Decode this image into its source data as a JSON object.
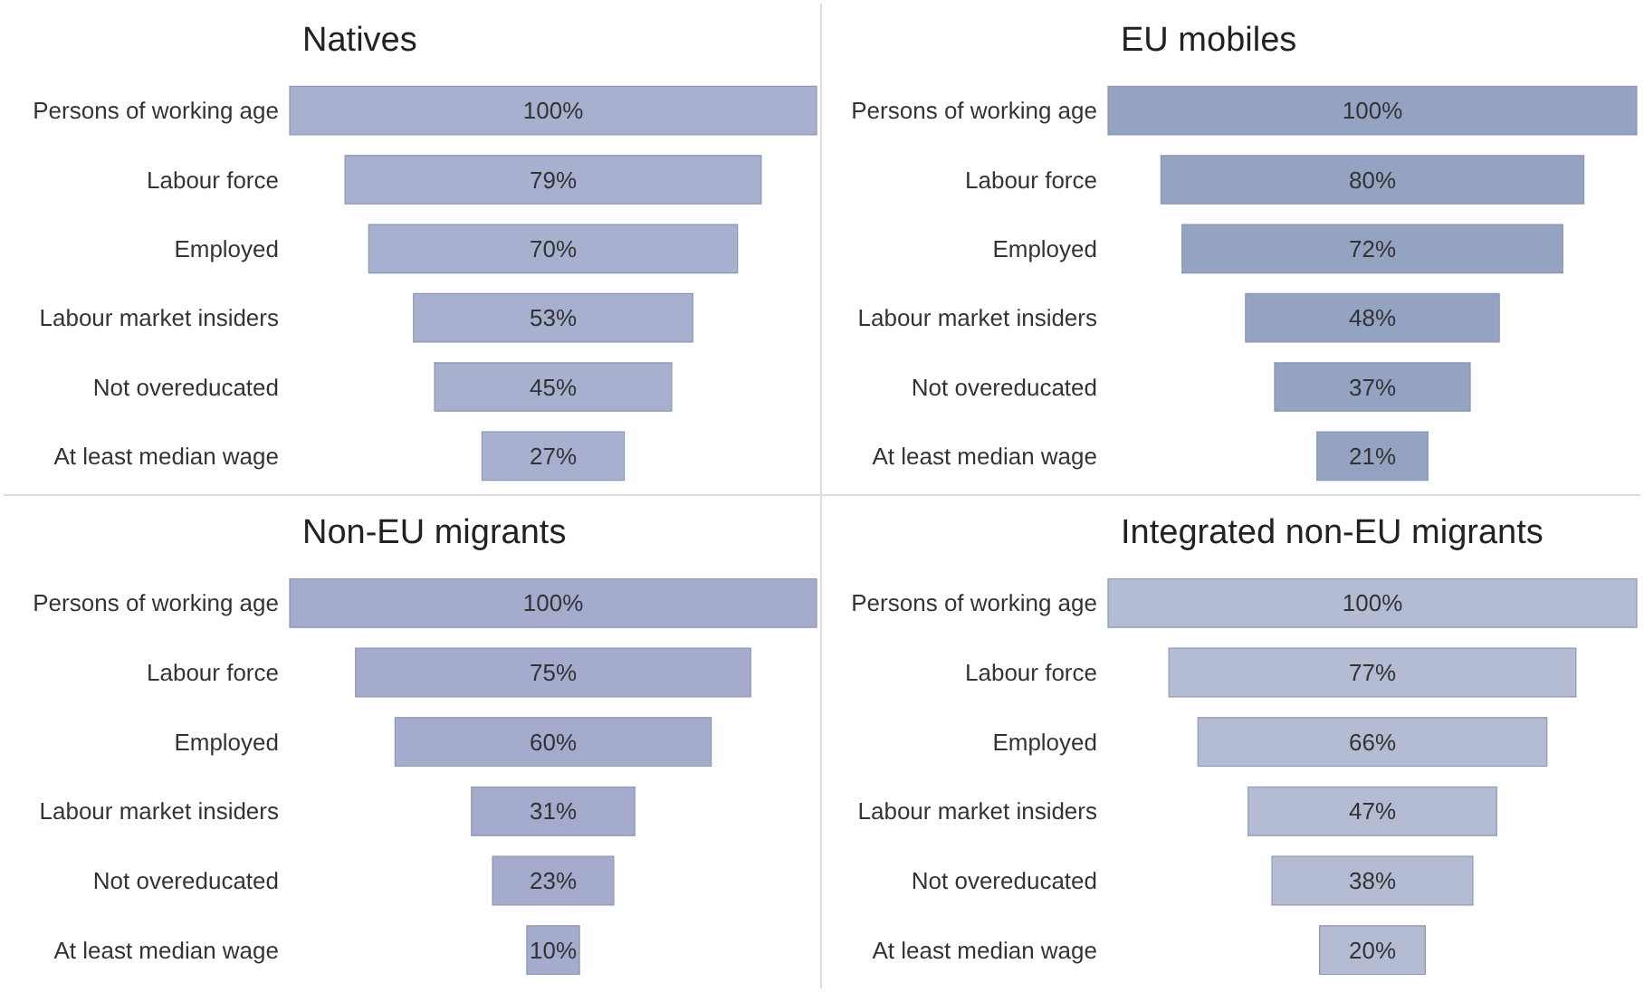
{
  "chart_data": [
    {
      "type": "other",
      "title": "Natives",
      "categories": [
        "Persons of working age",
        "Labour force",
        "Employed",
        "Labour market insiders",
        "Not overeducated",
        "At least median wage"
      ],
      "values": [
        100,
        79,
        70,
        53,
        45,
        27
      ],
      "value_labels": [
        "100%",
        "79%",
        "70%",
        "53%",
        "45%",
        "27%"
      ],
      "color": "#a7b1cf"
    },
    {
      "type": "other",
      "title": "EU mobiles",
      "categories": [
        "Persons of working age",
        "Labour force",
        "Employed",
        "Labour market insiders",
        "Not overeducated",
        "At least median wage"
      ],
      "values": [
        100,
        80,
        72,
        48,
        37,
        21
      ],
      "value_labels": [
        "100%",
        "80%",
        "72%",
        "48%",
        "37%",
        "21%"
      ],
      "color": "#95a3c3"
    },
    {
      "type": "other",
      "title": "Non-EU migrants",
      "categories": [
        "Persons of working age",
        "Labour force",
        "Employed",
        "Labour market insiders",
        "Not overeducated",
        "At least median wage"
      ],
      "values": [
        100,
        75,
        60,
        31,
        23,
        10
      ],
      "value_labels": [
        "100%",
        "75%",
        "60%",
        "31%",
        "23%",
        "10%"
      ],
      "color": "#a4abcd"
    },
    {
      "type": "other",
      "title": "Integrated non-EU migrants",
      "categories": [
        "Persons of working age",
        "Labour force",
        "Employed",
        "Labour market insiders",
        "Not overeducated",
        "At least median wage"
      ],
      "values": [
        100,
        77,
        66,
        47,
        38,
        20
      ],
      "value_labels": [
        "100%",
        "77%",
        "66%",
        "47%",
        "38%",
        "20%"
      ],
      "color": "#b4bcd3"
    }
  ]
}
